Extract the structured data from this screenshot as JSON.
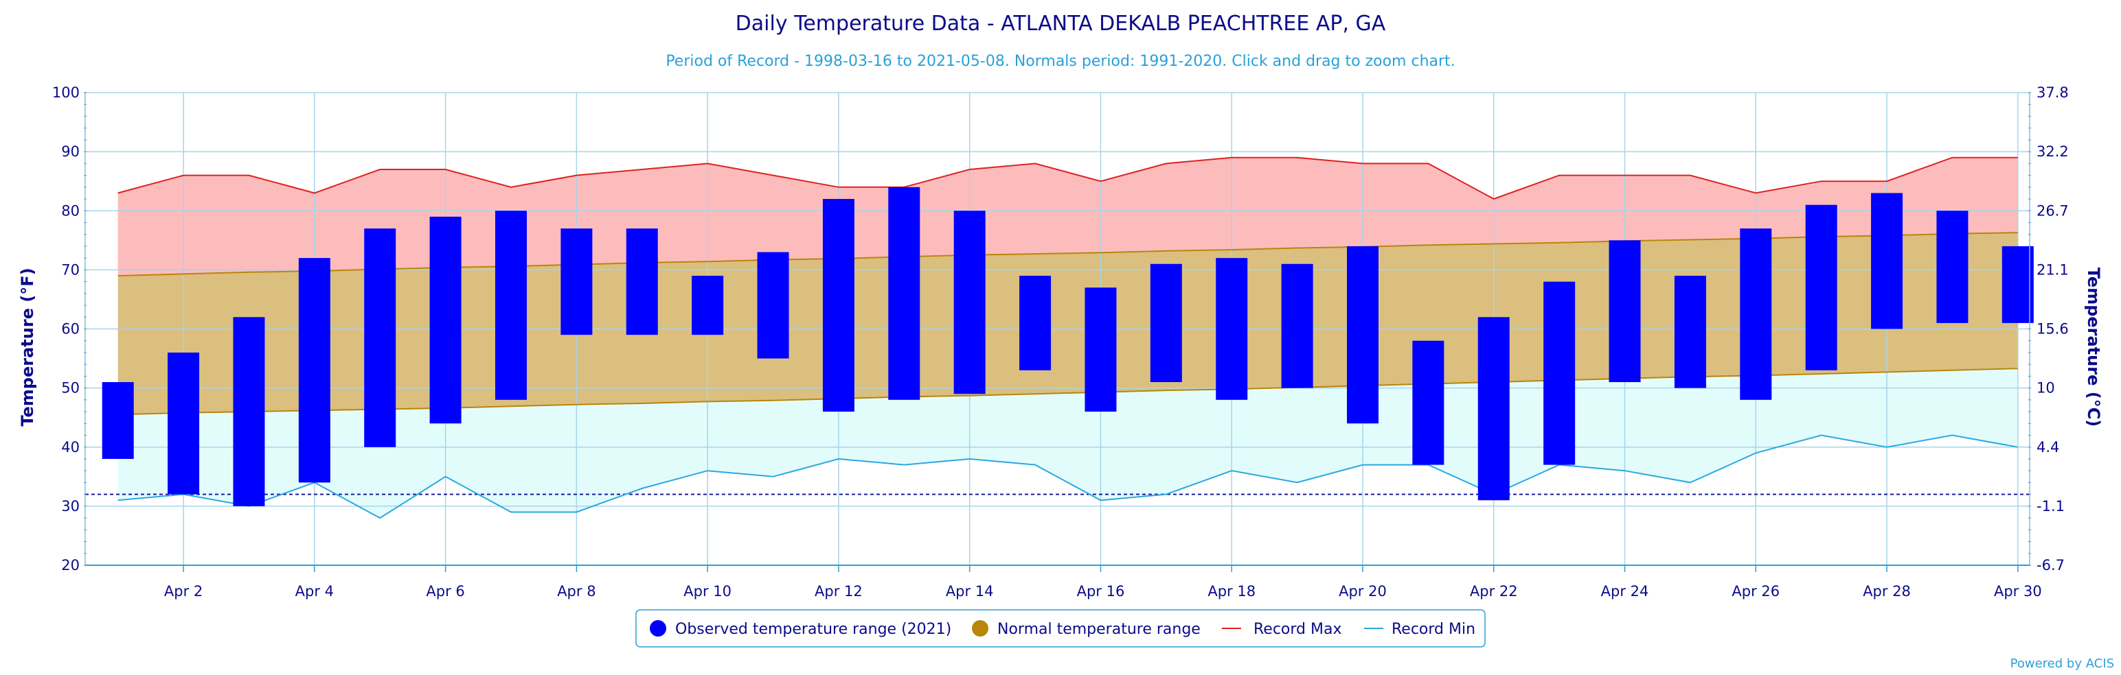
{
  "chart_data": {
    "type": "bar",
    "title": "Daily Temperature Data - ATLANTA DEKALB PEACHTREE AP, GA",
    "subtitle": "Period of Record - 1998-03-16 to 2021-05-08. Normals period: 1991-2020. Click and drag to zoom chart.",
    "ylabel_left": "Temperature (°F)",
    "ylabel_right": "Temperature (°C)",
    "ylim": [
      20,
      100
    ],
    "y_ticks_left": [
      "20",
      "30",
      "40",
      "50",
      "60",
      "70",
      "80",
      "90",
      "100"
    ],
    "y_ticks_right": [
      "-6.7",
      "-1.1",
      "4.4",
      "10",
      "15.6",
      "21.1",
      "26.7",
      "32.2",
      "37.8"
    ],
    "days": [
      1,
      2,
      3,
      4,
      5,
      6,
      7,
      8,
      9,
      10,
      11,
      12,
      13,
      14,
      15,
      16,
      17,
      18,
      19,
      20,
      21,
      22,
      23,
      24,
      25,
      26,
      27,
      28,
      29,
      30
    ],
    "x_tick_labels": [
      {
        "day": 2,
        "label": "Apr 2"
      },
      {
        "day": 4,
        "label": "Apr 4"
      },
      {
        "day": 6,
        "label": "Apr 6"
      },
      {
        "day": 8,
        "label": "Apr 8"
      },
      {
        "day": 10,
        "label": "Apr 10"
      },
      {
        "day": 12,
        "label": "Apr 12"
      },
      {
        "day": 14,
        "label": "Apr 14"
      },
      {
        "day": 16,
        "label": "Apr 16"
      },
      {
        "day": 18,
        "label": "Apr 18"
      },
      {
        "day": 20,
        "label": "Apr 20"
      },
      {
        "day": 22,
        "label": "Apr 22"
      },
      {
        "day": 24,
        "label": "Apr 24"
      },
      {
        "day": 26,
        "label": "Apr 26"
      },
      {
        "day": 28,
        "label": "Apr 28"
      },
      {
        "day": 30,
        "label": "Apr 30"
      }
    ],
    "freezing_line_f": 32,
    "series": [
      {
        "name": "Observed temperature range (2021)",
        "color": "#0000ff",
        "low": [
          38,
          32,
          30,
          34,
          40,
          44,
          48,
          59,
          59,
          59,
          55,
          46,
          48,
          49,
          53,
          46,
          51,
          48,
          50,
          44,
          37,
          31,
          37,
          51,
          50,
          48,
          53,
          60,
          61,
          61
        ],
        "high": [
          51,
          56,
          62,
          72,
          77,
          79,
          80,
          77,
          77,
          69,
          73,
          82,
          84,
          80,
          69,
          67,
          71,
          72,
          71,
          74,
          58,
          62,
          68,
          75,
          69,
          77,
          81,
          83,
          80,
          74
        ]
      },
      {
        "name": "Normal temperature range",
        "color": "#b8860b",
        "fill": "#dbbf7f",
        "low": [
          45.5,
          45.8,
          46.0,
          46.2,
          46.4,
          46.6,
          46.9,
          47.2,
          47.4,
          47.7,
          47.9,
          48.2,
          48.5,
          48.7,
          49.0,
          49.3,
          49.6,
          49.8,
          50.1,
          50.4,
          50.7,
          51.0,
          51.3,
          51.6,
          51.9,
          52.1,
          52.4,
          52.7,
          53.0,
          53.3
        ],
        "high": [
          69.0,
          69.3,
          69.6,
          69.8,
          70.1,
          70.4,
          70.6,
          70.9,
          71.2,
          71.4,
          71.7,
          71.9,
          72.2,
          72.5,
          72.7,
          72.9,
          73.2,
          73.4,
          73.7,
          73.9,
          74.2,
          74.4,
          74.6,
          74.9,
          75.1,
          75.3,
          75.6,
          75.8,
          76.1,
          76.3
        ]
      },
      {
        "name": "Record Max",
        "color": "#e02020",
        "fill": "#fdbcbc",
        "values": [
          83,
          86,
          86,
          83,
          87,
          87,
          84,
          86,
          87,
          88,
          86,
          84,
          84,
          87,
          88,
          85,
          88,
          89,
          89,
          88,
          88,
          82,
          86,
          86,
          86,
          83,
          85,
          85,
          89,
          89
        ]
      },
      {
        "name": "Record Min",
        "color": "#2aa8e0",
        "fill": "#e2fcfc",
        "values": [
          31,
          32,
          30,
          34,
          28,
          35,
          29,
          29,
          33,
          36,
          35,
          38,
          37,
          38,
          37,
          31,
          32,
          36,
          34,
          37,
          37,
          32,
          37,
          36,
          34,
          39,
          42,
          40,
          42,
          40
        ]
      }
    ],
    "legend": {
      "placement": "bottom-center",
      "items": [
        {
          "label": "Observed temperature range (2021)",
          "symbol": "circle",
          "color": "#0000ff"
        },
        {
          "label": "Normal temperature range",
          "symbol": "circle",
          "color": "#b8860b"
        },
        {
          "label": "Record Max",
          "symbol": "line",
          "color": "#e02020"
        },
        {
          "label": "Record Min",
          "symbol": "line",
          "color": "#2aa8e0"
        }
      ]
    },
    "credit": "Powered by ACIS",
    "grid": true
  }
}
